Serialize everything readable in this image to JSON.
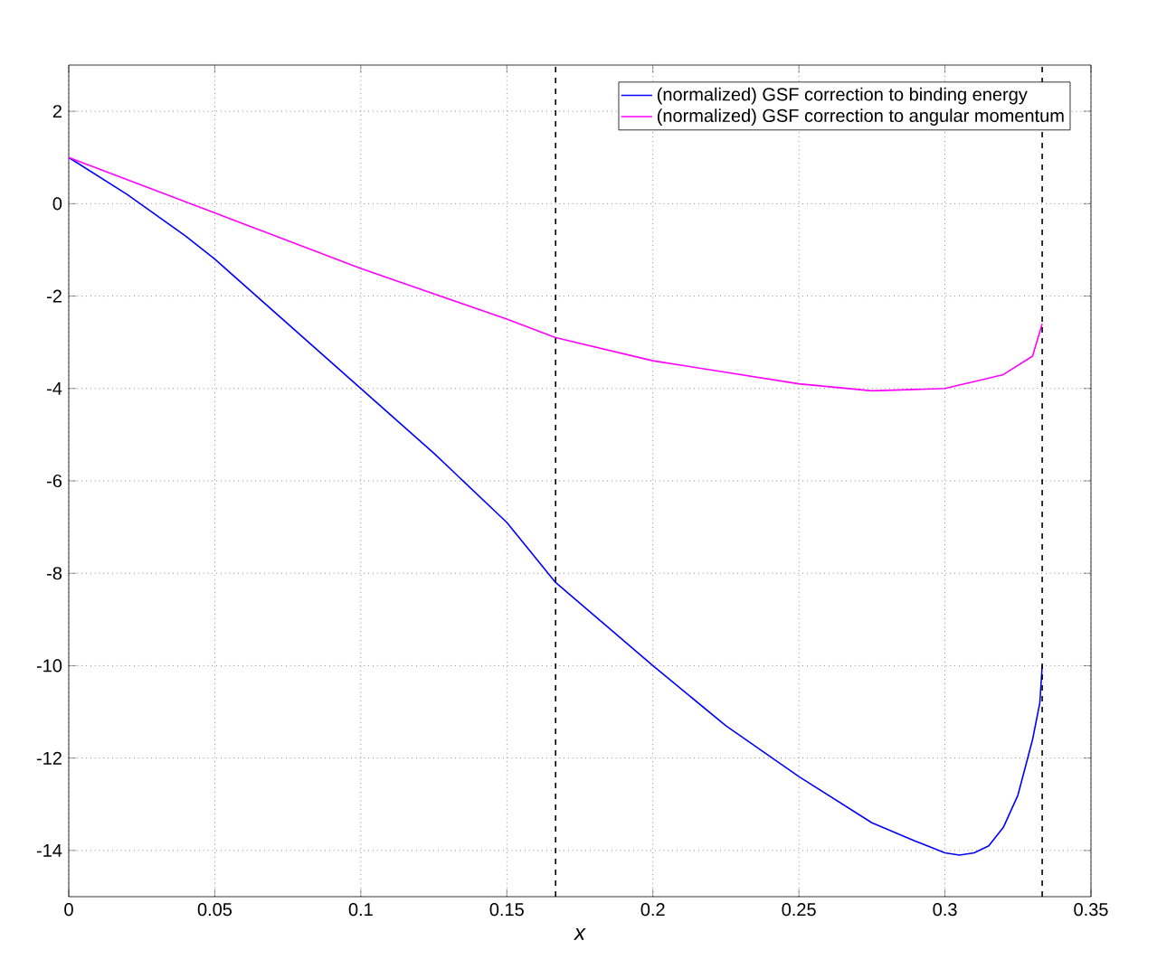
{
  "chart_data": {
    "type": "line",
    "xlabel": "x",
    "xlim": [
      0,
      0.35
    ],
    "ylim": [
      -15,
      3
    ],
    "xticks": [
      0,
      0.05,
      0.1,
      0.15,
      0.2,
      0.25,
      0.3,
      0.35
    ],
    "yticks": [
      -14,
      -12,
      -10,
      -8,
      -6,
      -4,
      -2,
      0,
      2
    ],
    "grid": true,
    "legend": "top right",
    "line_style": "solid",
    "marker": "none",
    "series": [
      {
        "name": "(normalized) GSF correction to binding energy",
        "color": "#0000ff",
        "x": [
          0,
          0.02,
          0.04,
          0.05,
          0.075,
          0.1,
          0.125,
          0.15,
          0.1667,
          0.2,
          0.225,
          0.25,
          0.275,
          0.29,
          0.3,
          0.305,
          0.31,
          0.315,
          0.32,
          0.325,
          0.33,
          0.3325,
          0.3333
        ],
        "values": [
          1,
          0.2,
          -0.7,
          -1.2,
          -2.6,
          -4.0,
          -5.4,
          -6.9,
          -8.2,
          -10.0,
          -11.3,
          -12.4,
          -13.4,
          -13.8,
          -14.05,
          -14.1,
          -14.05,
          -13.9,
          -13.5,
          -12.8,
          -11.6,
          -10.8,
          -10.0
        ]
      },
      {
        "name": "(normalized) GSF correction to angular momentum",
        "color": "#ff00ff",
        "x": [
          0,
          0.05,
          0.1,
          0.15,
          0.1667,
          0.2,
          0.25,
          0.275,
          0.3,
          0.32,
          0.33,
          0.3333
        ],
        "values": [
          1,
          -0.2,
          -1.4,
          -2.5,
          -2.9,
          -3.4,
          -3.9,
          -4.05,
          -4.0,
          -3.7,
          -3.3,
          -2.6
        ]
      }
    ],
    "ref_lines": [
      {
        "axis": "x",
        "value": 0.1667,
        "color": "#000000",
        "line_style": "dashed"
      },
      {
        "axis": "x",
        "value": 0.3333,
        "color": "#000000",
        "line_style": "dashed"
      }
    ]
  }
}
